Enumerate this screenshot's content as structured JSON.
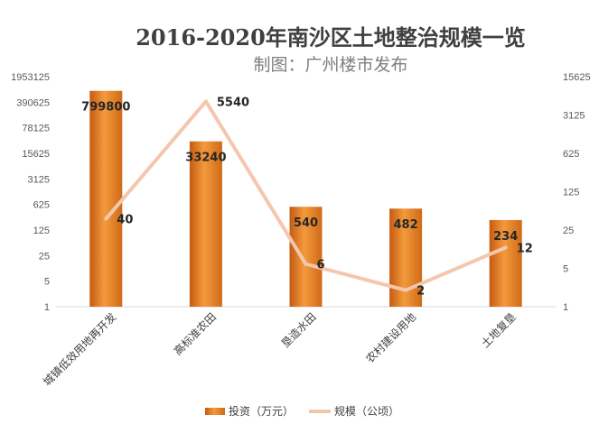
{
  "chart_data": {
    "type": "bar+line",
    "title": "2016-2020年南沙区土地整治规模一览",
    "subtitle": "制图：广州楼市发布",
    "categories": [
      "城镇低效用地再开发",
      "高标准农田",
      "垦造水田",
      "农村建设用地",
      "土地复垦"
    ],
    "series": [
      {
        "name": "投资（万元）",
        "type": "bar",
        "axis": "left",
        "values": [
          799800,
          33240,
          540,
          482,
          234
        ],
        "color": "#e8821e"
      },
      {
        "name": "规模（公顷）",
        "type": "line",
        "axis": "right",
        "values": [
          40,
          5540,
          6,
          2,
          12
        ],
        "color": "#f4c7ad"
      }
    ],
    "left_axis": {
      "scale": "log5",
      "ticks": [
        "1",
        "5",
        "25",
        "125",
        "625",
        "3125",
        "15625",
        "78125",
        "390625",
        "1953125"
      ],
      "min": 1,
      "max": 1953125
    },
    "right_axis": {
      "scale": "log5",
      "ticks": [
        "1",
        "5",
        "25",
        "125",
        "625",
        "3125",
        "15625"
      ],
      "min": 1,
      "max": 15625
    },
    "legend_position": "bottom",
    "grid": false
  }
}
